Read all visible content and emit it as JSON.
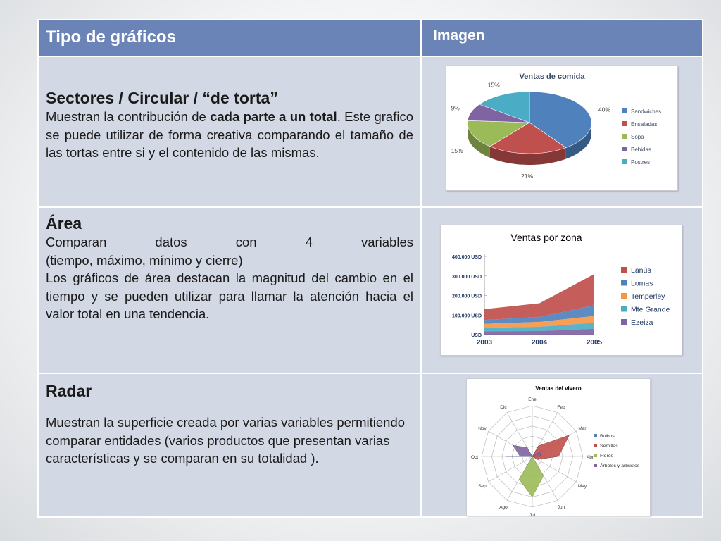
{
  "header": {
    "col1": "Tipo de gráficos",
    "col2": "Imagen"
  },
  "rows": [
    {
      "title": "Sectores / Circular / “de torta”",
      "desc_a": "Muestran la contribución de ",
      "desc_bold": "cada parte a un total",
      "desc_b": ". Este grafico se puede utilizar de forma creativa comparando el tamaño de las tortas entre si y el contenido de las mismas."
    },
    {
      "title": "Área",
      "desc_1": "Comparan datos con 4 variables",
      "desc_2": "(tiempo, máximo, mínimo y cierre)",
      "desc_3": " Los gráficos de área destacan la magnitud del cambio en el tiempo y se pueden utilizar para llamar la atención hacia el valor total en una tendencia."
    },
    {
      "title": "Radar",
      "desc": "Muestran la superficie creada por varias variables permitiendo comparar entidades (varios productos que presentan varias características y se comparan en su totalidad )."
    }
  ],
  "chart_data": [
    {
      "type": "pie",
      "title": "Ventas de comida",
      "categories": [
        "Sandwiches",
        "Ensaladas",
        "Sopa",
        "Bebidas",
        "Postres"
      ],
      "values": [
        40,
        21,
        15,
        9,
        15
      ],
      "labels": [
        "40%",
        "21%",
        "15%",
        "9%",
        "15%"
      ],
      "colors": [
        "#4f81bd",
        "#c0504d",
        "#9bbb59",
        "#8064a2",
        "#4bacc6"
      ],
      "legend": "right"
    },
    {
      "type": "area",
      "title": "Ventas por zona",
      "x": [
        "2003",
        "2004",
        "2005"
      ],
      "ytick_labels": [
        "USD",
        "100.000 USD",
        "200.000 USD",
        "300.000 USD",
        "400.000 USD"
      ],
      "ylim": [
        0,
        400000
      ],
      "series": [
        {
          "name": "Lanús",
          "color": "#c0504d"
        },
        {
          "name": "Lomas",
          "color": "#4f81bd"
        },
        {
          "name": "Temperley",
          "color": "#f79646"
        },
        {
          "name": "Mte Grande",
          "color": "#4bacc6"
        },
        {
          "name": "Ezeiza",
          "color": "#8064a2"
        }
      ],
      "stacked_values": [
        [
          55000,
          70000,
          160000
        ],
        [
          20000,
          25000,
          55000
        ],
        [
          20000,
          25000,
          35000
        ],
        [
          18000,
          22000,
          30000
        ],
        [
          17000,
          18000,
          30000
        ]
      ],
      "legend": "right"
    },
    {
      "type": "radar",
      "title": "Ventas del vivero",
      "axes": [
        "Ene",
        "Feb",
        "Mar",
        "Abr",
        "May",
        "Jun",
        "Jul",
        "Ago",
        "Sep",
        "Oct",
        "Nov",
        "Dic"
      ],
      "series": [
        {
          "name": "Bulbos",
          "color": "#4f81bd",
          "values": [
            0,
            0,
            0,
            0,
            0,
            0,
            0,
            0,
            0,
            2.6,
            0,
            0
          ]
        },
        {
          "name": "Semillas",
          "color": "#c0504d",
          "values": [
            0,
            1.2,
            4.2,
            2.6,
            0.6,
            0,
            0,
            0,
            0,
            0,
            0,
            0
          ]
        },
        {
          "name": "Flores",
          "color": "#9bbb59",
          "values": [
            0,
            0,
            0,
            0,
            0,
            2.2,
            4.0,
            2.6,
            0,
            0,
            0,
            0
          ]
        },
        {
          "name": "Árboles y arbustos",
          "color": "#8064a2",
          "values": [
            0,
            0,
            1.0,
            0.8,
            0,
            0,
            0,
            0,
            0,
            1.2,
            2.2,
            1.0
          ]
        }
      ],
      "legend": "right"
    }
  ]
}
